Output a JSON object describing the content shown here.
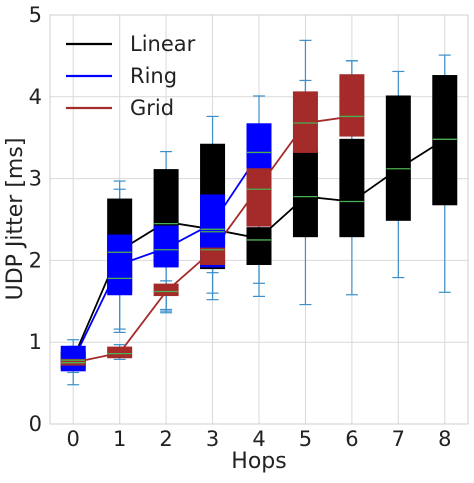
{
  "chart_data": {
    "type": "box",
    "xlabel": "Hops",
    "ylabel": "UDP Jitter [ms]",
    "xlim": [
      -0.5,
      8.5
    ],
    "ylim": [
      0,
      5
    ],
    "xticks": [
      "0",
      "1",
      "2",
      "3",
      "4",
      "5",
      "6",
      "7",
      "8"
    ],
    "yticks": [
      "0",
      "1",
      "2",
      "3",
      "4",
      "5"
    ],
    "grid": true,
    "legend_position": "top-left",
    "whisker_color": "#3c8fc9",
    "median_color": "#4caf50",
    "series": [
      {
        "name": "Linear",
        "color": "#000000",
        "line_color": "#000000",
        "x": [
          0,
          1,
          2,
          3,
          4,
          5,
          6,
          7,
          8
        ],
        "mean": [
          0.8,
          2.12,
          2.47,
          2.38,
          2.27,
          2.78,
          2.72,
          3.12,
          3.48
        ],
        "boxes": [
          {
            "x": 0,
            "whislo": 0.63,
            "q1": 0.68,
            "med": 0.78,
            "q3": 0.88,
            "whishi": 0.95
          },
          {
            "x": 1,
            "whislo": 1.12,
            "q1": 1.62,
            "med": 2.1,
            "q3": 2.75,
            "whishi": 2.97
          },
          {
            "x": 2,
            "whislo": 1.38,
            "q1": 1.95,
            "med": 2.45,
            "q3": 3.11,
            "whishi": 3.33
          },
          {
            "x": 3,
            "whislo": 1.52,
            "q1": 1.9,
            "med": 2.35,
            "q3": 3.42,
            "whishi": 3.76
          },
          {
            "x": 4,
            "whislo": 1.56,
            "q1": 1.95,
            "med": 2.25,
            "q3": 2.4,
            "whishi": 2.6
          },
          {
            "x": 5,
            "whislo": 1.46,
            "q1": 2.29,
            "med": 2.78,
            "q3": 3.34,
            "whishi": 4.69
          },
          {
            "x": 6,
            "whislo": 1.58,
            "q1": 2.29,
            "med": 2.72,
            "q3": 3.48,
            "whishi": 4.44
          },
          {
            "x": 7,
            "whislo": 1.79,
            "q1": 2.49,
            "med": 3.12,
            "q3": 4.01,
            "whishi": 4.31
          },
          {
            "x": 8,
            "whislo": 1.61,
            "q1": 2.68,
            "med": 3.48,
            "q3": 4.26,
            "whishi": 4.51
          }
        ]
      },
      {
        "name": "Ring",
        "color": "#0000ff",
        "line_color": "#0000ff",
        "x": [
          0,
          1,
          2,
          3,
          4
        ],
        "mean": [
          0.78,
          1.95,
          2.15,
          2.45,
          3.3
        ],
        "boxes": [
          {
            "x": 0,
            "whislo": 0.48,
            "q1": 0.65,
            "med": 0.75,
            "q3": 0.95,
            "whishi": 1.03
          },
          {
            "x": 1,
            "whislo": 1.16,
            "q1": 1.58,
            "med": 1.78,
            "q3": 2.31,
            "whishi": 2.87
          },
          {
            "x": 2,
            "whislo": 1.4,
            "q1": 1.92,
            "med": 2.13,
            "q3": 2.42,
            "whishi": 2.68
          },
          {
            "x": 3,
            "whislo": 1.6,
            "q1": 1.92,
            "med": 2.38,
            "q3": 2.8,
            "whishi": 3.1
          },
          {
            "x": 4,
            "whislo": 1.72,
            "q1": 2.42,
            "med": 3.32,
            "q3": 3.67,
            "whishi": 4.01
          }
        ]
      },
      {
        "name": "Grid",
        "color": "#a52a2a",
        "line_color": "#a52a2a",
        "x": [
          0,
          1,
          2,
          3,
          4,
          5,
          6
        ],
        "mean": [
          0.75,
          0.87,
          1.62,
          2.12,
          2.9,
          3.68,
          3.76
        ],
        "boxes": [
          {
            "x": 0,
            "whislo": 0.7,
            "q1": 0.72,
            "med": 0.75,
            "q3": 0.79,
            "whishi": 0.82
          },
          {
            "x": 1,
            "whislo": 0.79,
            "q1": 0.81,
            "med": 0.86,
            "q3": 0.94,
            "whishi": 0.97
          },
          {
            "x": 2,
            "whislo": 1.36,
            "q1": 1.57,
            "med": 1.62,
            "q3": 1.71,
            "whishi": 1.75
          },
          {
            "x": 3,
            "whislo": 1.85,
            "q1": 1.95,
            "med": 2.13,
            "q3": 2.15,
            "whishi": 2.16
          },
          {
            "x": 4,
            "whislo": 2.1,
            "q1": 2.42,
            "med": 2.87,
            "q3": 3.12,
            "whishi": 3.3
          },
          {
            "x": 5,
            "whislo": 3.0,
            "q1": 3.32,
            "med": 3.68,
            "q3": 4.06,
            "whishi": 4.2
          },
          {
            "x": 6,
            "whislo": 3.3,
            "q1": 3.52,
            "med": 3.76,
            "q3": 4.27,
            "whishi": 4.44
          }
        ]
      }
    ]
  }
}
